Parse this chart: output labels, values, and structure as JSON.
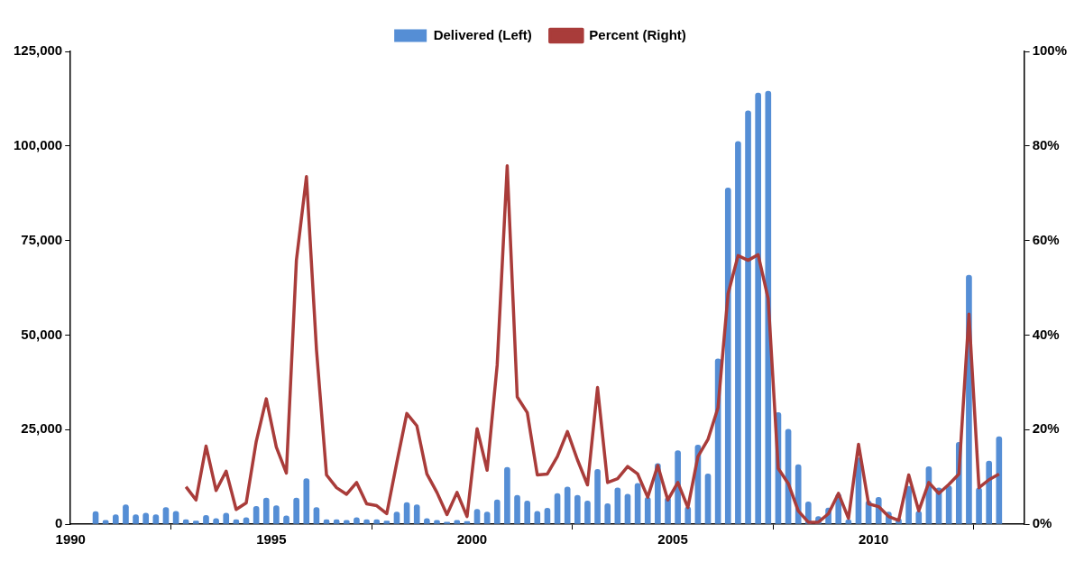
{
  "chart_data": {
    "type": "bar",
    "legend": "top",
    "grid": false,
    "x": [
      1990.625,
      1990.875,
      1991.125,
      1991.375,
      1991.625,
      1991.875,
      1992.125,
      1992.375,
      1992.625,
      1992.875,
      1993.125,
      1993.375,
      1993.625,
      1993.875,
      1994.125,
      1994.375,
      1994.625,
      1994.875,
      1995.125,
      1995.375,
      1995.625,
      1995.875,
      1996.125,
      1996.375,
      1996.625,
      1996.875,
      1997.125,
      1997.375,
      1997.625,
      1997.875,
      1998.125,
      1998.375,
      1998.625,
      1998.875,
      1999.125,
      1999.375,
      1999.625,
      1999.875,
      2000.125,
      2000.375,
      2000.625,
      2000.875,
      2001.125,
      2001.375,
      2001.625,
      2001.875,
      2002.125,
      2002.375,
      2002.625,
      2002.875,
      2003.125,
      2003.375,
      2003.625,
      2003.875,
      2004.125,
      2004.375,
      2004.625,
      2004.875,
      2005.125,
      2005.375,
      2005.625,
      2005.875,
      2006.125,
      2006.375,
      2006.625,
      2006.875,
      2007.125,
      2007.375,
      2007.625,
      2007.875,
      2008.125,
      2008.375,
      2008.625,
      2008.875,
      2009.125,
      2009.375,
      2009.625,
      2009.875,
      2010.125,
      2010.375,
      2010.625,
      2010.875,
      2011.125,
      2011.375,
      2011.625,
      2011.875,
      2012.125,
      2012.375,
      2012.625,
      2012.875,
      2013.125
    ],
    "xlim": [
      1990,
      2013.75
    ],
    "xticks": [
      1990,
      1995,
      2000,
      2005,
      2010
    ],
    "ylim": [
      0,
      125000
    ],
    "yticks": [
      0,
      {
        "value": 25000,
        "label": "25,000"
      },
      {
        "value": 50000,
        "label": "50,000"
      },
      {
        "value": 75000,
        "label": "75,000"
      },
      {
        "value": 100000,
        "label": "100,000"
      },
      {
        "value": 125000,
        "label": "125,000"
      }
    ],
    "y2lim": [
      0,
      100
    ],
    "y2ticks": [
      {
        "value": 0,
        "label": "0%"
      },
      {
        "value": 20,
        "label": "20%"
      },
      {
        "value": 40,
        "label": "40%"
      },
      {
        "value": 60,
        "label": "60%"
      },
      {
        "value": 80,
        "label": "80%"
      },
      {
        "value": 100,
        "label": "100%"
      }
    ],
    "series": [
      {
        "name": "Delivered (Left)",
        "color": "#558ed5",
        "values": [
          3300,
          1000,
          2500,
          5100,
          2500,
          2900,
          2500,
          4400,
          3400,
          1200,
          800,
          2300,
          1500,
          2900,
          1200,
          1700,
          4700,
          6900,
          4900,
          2200,
          6900,
          12000,
          4400,
          1200,
          1200,
          1000,
          1700,
          1200,
          1200,
          800,
          3200,
          5700,
          5100,
          1500,
          1000,
          500,
          1000,
          700,
          3900,
          3200,
          6400,
          15000,
          7600,
          6100,
          3400,
          4200,
          8100,
          9800,
          7600,
          6100,
          14500,
          5400,
          9600,
          7900,
          10800,
          7100,
          16000,
          7000,
          19400,
          4600,
          20900,
          13300,
          43700,
          88900,
          101200,
          109300,
          114000,
          114500,
          29500,
          25100,
          15700,
          5900,
          2000,
          4300,
          8000,
          1100,
          17500,
          6100,
          7100,
          3200,
          1500,
          10000,
          3400,
          15200,
          9600,
          10100,
          21600,
          65800,
          9600,
          16700,
          23100
        ]
      },
      {
        "name": "Percent (Right)",
        "type": "line",
        "axis": "y2",
        "color": "#a93c3a",
        "marker": "none",
        "line_style": "solid",
        "values": [
          null,
          null,
          null,
          null,
          null,
          null,
          null,
          null,
          null,
          7.9,
          5.1,
          16.5,
          7.1,
          11.2,
          3.1,
          4.5,
          17.5,
          26.5,
          16.3,
          10.8,
          55.8,
          73.5,
          36.9,
          10.4,
          7.7,
          6.3,
          8.8,
          4.3,
          3.9,
          2.2,
          13.0,
          23.4,
          20.8,
          10.6,
          6.7,
          2.0,
          6.7,
          1.6,
          20.2,
          11.4,
          33.6,
          75.8,
          26.9,
          23.6,
          10.4,
          10.6,
          14.3,
          19.6,
          13.6,
          8.3,
          28.9,
          8.8,
          9.6,
          12.2,
          10.6,
          5.7,
          12.4,
          5.1,
          8.8,
          3.5,
          14.3,
          17.9,
          24.6,
          48.7,
          56.8,
          55.8,
          57.0,
          47.7,
          11.8,
          8.6,
          2.8,
          0.4,
          0.4,
          2.2,
          6.5,
          1.2,
          16.9,
          4.3,
          3.7,
          1.6,
          0.8,
          10.4,
          2.8,
          8.8,
          6.5,
          8.4,
          10.6,
          44.4,
          7.7,
          9.4,
          10.6
        ]
      }
    ]
  }
}
